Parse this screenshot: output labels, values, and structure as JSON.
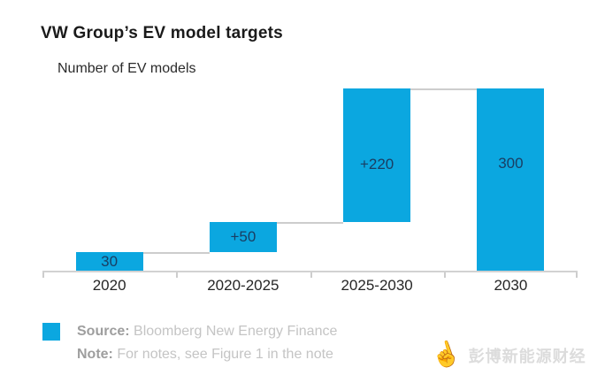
{
  "title": "VW Group’s EV model targets",
  "subtitle": "Number of EV models",
  "footer": {
    "source_label": "Source:",
    "source_value": "Bloomberg New Energy Finance",
    "note_label": "Note:",
    "note_value": "For notes, see Figure 1 in the note"
  },
  "watermark": {
    "icon": "pointing-hand",
    "text": "彭博新能源财经"
  },
  "colors": {
    "bar": "#0ba7e0",
    "bar_label": "#1a3e63",
    "axis": "#d2d2d2",
    "connector": "#cdcdcd"
  },
  "chart_data": {
    "type": "bar",
    "subtype": "waterfall",
    "title": "VW Group’s EV model targets",
    "axis_label": "Number of EV models",
    "categories": [
      "2020",
      "2020-2025",
      "2025-2030",
      "2030"
    ],
    "segments": [
      {
        "category": "2020",
        "start": 0,
        "end": 30,
        "label": "30",
        "label_dy": 0
      },
      {
        "category": "2020-2025",
        "start": 30,
        "end": 80,
        "label": "+50",
        "label_dy": 0
      },
      {
        "category": "2025-2030",
        "start": 80,
        "end": 300,
        "label": "+220",
        "label_dy": 10
      },
      {
        "category": "2030",
        "start": 0,
        "end": 300,
        "label": "300",
        "label_dy": -18
      }
    ],
    "ylim": [
      0,
      300
    ],
    "grid": false,
    "legend": "none",
    "xlabel": "",
    "ylabel": "Number of EV models"
  }
}
